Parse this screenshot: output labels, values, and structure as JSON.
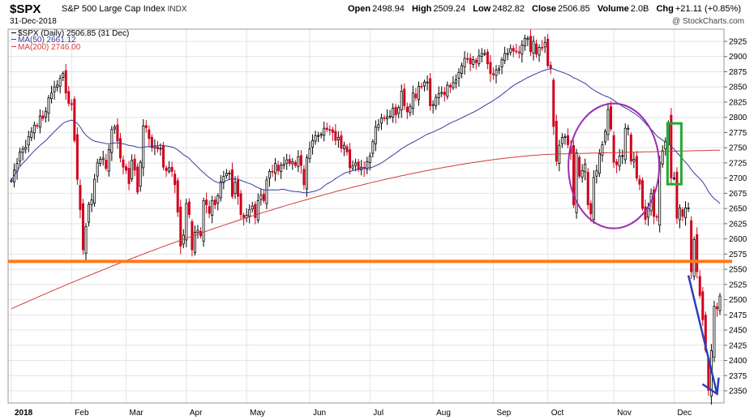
{
  "header": {
    "symbol": "$SPX",
    "name": "S&P 500 Large Cap Index",
    "exchange": "INDX",
    "date": "31-Dec-2018",
    "open_label": "Open",
    "open": "2498.94",
    "high_label": "High",
    "high": "2509.24",
    "low_label": "Low",
    "low": "2482.82",
    "close_label": "Close",
    "close": "2506.85",
    "volume_label": "Volume",
    "volume": "2.0B",
    "chg_label": "Chg",
    "chg": "+21.11 (+0.85%)",
    "credit": "@ StockCharts.com"
  },
  "legend": {
    "price": "$SPX (Daily) 2506.85 (31 Dec)",
    "ma50": "MA(50) 2661.12",
    "ma200": "MA(200) 2746.00"
  },
  "colors": {
    "up": "#000000",
    "down": "#d0011b",
    "ma50": "#3a3aa0",
    "ma200": "#d23c3c",
    "support": "#ff7a1a",
    "circle": "#9a2fb0",
    "box": "#22aa33",
    "arrow": "#2b3fb8",
    "grid": "#e4e4e4"
  },
  "chart_data": {
    "type": "candlestick",
    "title": "$SPX S&P 500 Large Cap Index",
    "ylim": [
      2330,
      2945
    ],
    "y_ticks": [
      2350,
      2375,
      2400,
      2425,
      2450,
      2475,
      2500,
      2525,
      2550,
      2575,
      2600,
      2625,
      2650,
      2675,
      2700,
      2725,
      2750,
      2775,
      2800,
      2825,
      2850,
      2875,
      2900,
      2925
    ],
    "x_tick_labels": [
      "2018",
      "Feb",
      "Mar",
      "Apr",
      "May",
      "Jun",
      "Jul",
      "Aug",
      "Sep",
      "Oct",
      "Nov",
      "Dec"
    ],
    "closes": [
      2696,
      2713,
      2724,
      2743,
      2748,
      2751,
      2768,
      2776,
      2787,
      2786,
      2802,
      2798,
      2810,
      2832,
      2840,
      2850,
      2853,
      2864,
      2872,
      2840,
      2823,
      2821,
      2762,
      2698,
      2648,
      2582,
      2620,
      2657,
      2664,
      2698,
      2725,
      2731,
      2733,
      2716,
      2747,
      2780,
      2784,
      2761,
      2733,
      2718,
      2713,
      2691,
      2729,
      2713,
      2677,
      2726,
      2786,
      2783,
      2765,
      2750,
      2752,
      2748,
      2749,
      2718,
      2712,
      2717,
      2711,
      2689,
      2644,
      2588,
      2606,
      2658,
      2640,
      2582,
      2611,
      2614,
      2605,
      2663,
      2656,
      2642,
      2663,
      2656,
      2671,
      2694,
      2703,
      2708,
      2708,
      2670,
      2693,
      2670,
      2640,
      2635,
      2639,
      2648,
      2654,
      2635,
      2663,
      2672,
      2663,
      2697,
      2711,
      2710,
      2724,
      2712,
      2721,
      2723,
      2730,
      2724,
      2727,
      2721,
      2735,
      2721,
      2689,
      2734,
      2748,
      2762,
      2770,
      2770,
      2772,
      2782,
      2780,
      2779,
      2775,
      2762,
      2767,
      2749,
      2754,
      2743,
      2717,
      2720,
      2725,
      2714,
      2718,
      2716,
      2727,
      2736,
      2760,
      2784,
      2788,
      2799,
      2798,
      2801,
      2802,
      2815,
      2804,
      2816,
      2843,
      2819,
      2809,
      2818,
      2840,
      2832,
      2851,
      2850,
      2858,
      2858,
      2819,
      2821,
      2833,
      2839,
      2841,
      2837,
      2853,
      2850,
      2857,
      2862,
      2874,
      2885,
      2897,
      2896,
      2888,
      2895,
      2890,
      2901,
      2905,
      2905,
      2888,
      2872,
      2870,
      2878,
      2880,
      2895,
      2905,
      2905,
      2913,
      2909,
      2908,
      2906,
      2919,
      2930,
      2930,
      2908,
      2925,
      2904,
      2915,
      2914,
      2923,
      2885,
      2880,
      2785,
      2728,
      2754,
      2767,
      2768,
      2755,
      2741,
      2656,
      2742,
      2703,
      2712,
      2723,
      2656,
      2641,
      2701,
      2712,
      2740,
      2755,
      2777,
      2813,
      2781,
      2726,
      2722,
      2736,
      2737,
      2782,
      2782,
      2728,
      2731,
      2700,
      2690,
      2650,
      2632,
      2650,
      2675,
      2637,
      2636,
      2726,
      2745,
      2760,
      2790,
      2700,
      2700,
      2634,
      2651,
      2637,
      2651,
      2651,
      2546,
      2599,
      2546,
      2507,
      2467,
      2417,
      2351,
      2416,
      2489,
      2485,
      2506
    ],
    "ma200": [
      2485,
      2740,
      2746
    ],
    "annotations": []
  }
}
